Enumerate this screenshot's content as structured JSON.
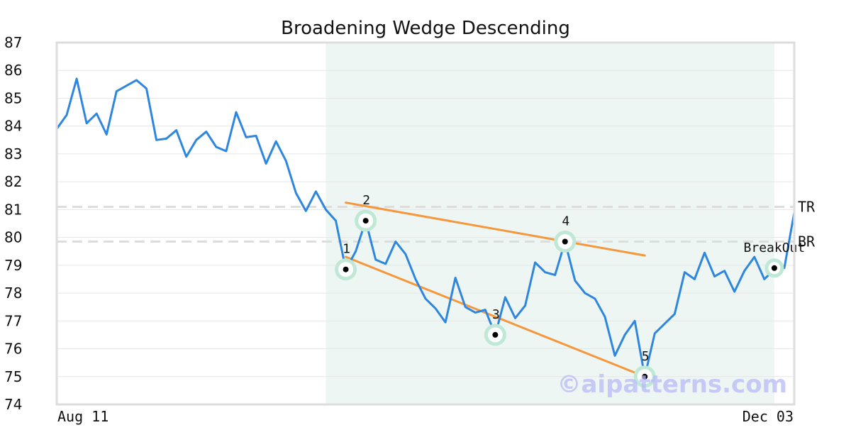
{
  "chart_data": {
    "type": "line",
    "title": "Broadening Wedge Descending",
    "ylim": [
      74,
      87
    ],
    "yticks": [
      "74",
      "75",
      "76",
      "77",
      "78",
      "79",
      "80",
      "81",
      "82",
      "83",
      "84",
      "85",
      "86",
      "87"
    ],
    "x_labels": {
      "start": "Aug 11",
      "end": "Dec 03"
    },
    "grid": true,
    "series": [
      {
        "color": "#2e86de",
        "values": [
          83.9,
          84.4,
          85.7,
          84.1,
          84.45,
          83.7,
          85.25,
          85.45,
          85.65,
          85.35,
          83.5,
          83.55,
          83.85,
          82.9,
          83.5,
          83.8,
          83.25,
          83.1,
          84.5,
          83.6,
          83.65,
          82.65,
          83.45,
          82.75,
          81.6,
          80.95,
          81.65,
          81.0,
          80.6,
          78.85,
          79.5,
          80.6,
          79.2,
          79.05,
          79.85,
          79.4,
          78.5,
          77.8,
          77.45,
          76.95,
          78.55,
          77.5,
          77.3,
          77.4,
          76.5,
          77.85,
          77.1,
          77.55,
          79.1,
          78.75,
          78.65,
          79.85,
          78.45,
          78.0,
          77.8,
          77.15,
          75.75,
          76.5,
          77.0,
          75.0,
          76.55,
          76.9,
          77.25,
          78.75,
          78.5,
          79.45,
          78.6,
          78.8,
          78.05,
          78.8,
          79.3,
          78.5,
          78.85,
          78.9,
          80.9
        ]
      }
    ],
    "pattern_zone": {
      "start_index": 27,
      "end_index": 72,
      "color": "#eef6f3"
    },
    "pattern_points": [
      {
        "label": "1",
        "index": 29,
        "value": 78.85
      },
      {
        "label": "2",
        "index": 31,
        "value": 80.6
      },
      {
        "label": "3",
        "index": 44,
        "value": 76.5
      },
      {
        "label": "4",
        "index": 51,
        "value": 79.85
      },
      {
        "label": "5",
        "index": 59,
        "value": 75.0
      }
    ],
    "breakout": {
      "label": "BreakOut",
      "index": 72,
      "value": 78.9
    },
    "trend_lines": [
      {
        "from_index": 29,
        "from_value": 79.3,
        "to_index": 59,
        "to_value": 75.0,
        "color": "#f5973d"
      },
      {
        "from_index": 29,
        "from_value": 81.25,
        "to_index": 59,
        "to_value": 79.35,
        "color": "#f5973d"
      }
    ],
    "reference_lines": [
      {
        "label": "TR",
        "value": 81.1
      },
      {
        "label": "BR",
        "value": 79.85
      }
    ]
  },
  "watermark": "©aipatterns.com"
}
